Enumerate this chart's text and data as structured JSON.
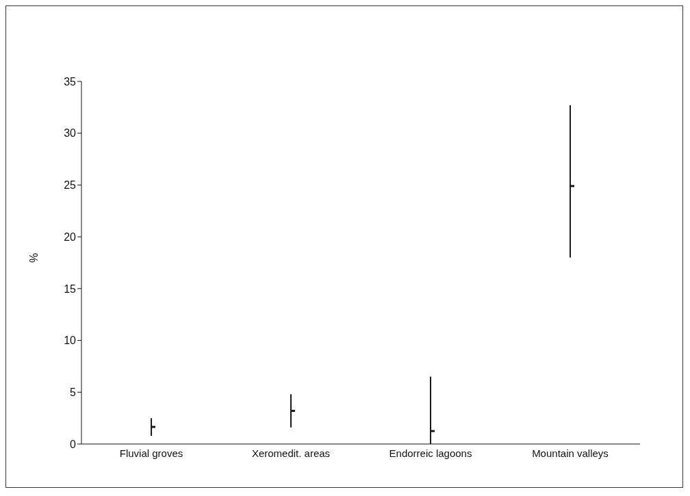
{
  "chart_data": {
    "type": "scatter",
    "ylabel": "%",
    "categories": [
      "Fluvial groves",
      "Xeromedit. areas",
      "Endorreic lagoons",
      "Mountain valleys"
    ],
    "values": [
      1.65,
      3.2,
      1.25,
      24.9
    ],
    "errors": [
      [
        0.8,
        2.5
      ],
      [
        1.6,
        4.8
      ],
      [
        0,
        6.5
      ],
      [
        18.0,
        32.7
      ]
    ],
    "color": "#1a1a1a",
    "ylim": [
      0,
      35
    ],
    "yticks": [
      0,
      5,
      10,
      15,
      20,
      25,
      30,
      35
    ],
    "grid": false,
    "legend": false
  }
}
